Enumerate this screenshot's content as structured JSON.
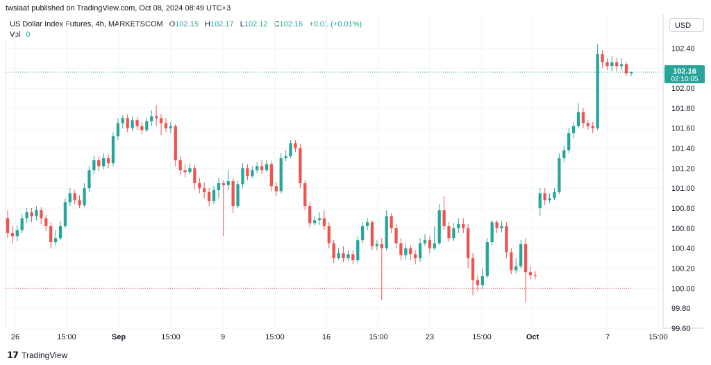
{
  "header": {
    "published": "twsiaat published on TradingView.com, Oct 08, 2024 08:49 UTC+3"
  },
  "legend": {
    "symbol": "US Dollar Index Futures, 4h, MARKETSCOM",
    "o_label": "O",
    "o_value": "102.15",
    "h_label": "H",
    "h_value": "102.17",
    "l_label": "L",
    "l_value": "102.12",
    "c_label": "C",
    "c_value": "102.16",
    "change": "+0.01 (+0.01%)",
    "vol_label": "Vol",
    "vol_value": "0"
  },
  "currency": "USD",
  "price_tag": {
    "price": "102.16",
    "countdown": "02:10:05"
  },
  "footer": {
    "brand": "TradingView"
  },
  "colors": {
    "up": "#26a69a",
    "down": "#ef5350",
    "grid": "#f0f3fa",
    "text": "#131722"
  },
  "chart_data": {
    "type": "candlestick",
    "title": "US Dollar Index Futures, 4h, MARKETSCOM",
    "ylim": [
      99.6,
      102.5
    ],
    "y_ticks": [
      "102.40",
      "102.20",
      "102.00",
      "101.80",
      "101.60",
      "101.40",
      "101.20",
      "101.00",
      "100.80",
      "100.60",
      "100.40",
      "100.20",
      "100.00",
      "99.80",
      "99.60"
    ],
    "x_ticks": [
      "26",
      "15:00",
      "Sep",
      "15:00",
      "9",
      "15:00",
      "16",
      "15:00",
      "23",
      "15:00",
      "Oct",
      "7",
      "15:00"
    ],
    "bold_x_ticks": [
      "Sep",
      "Oct"
    ],
    "last_price": 102.16,
    "dotted_level": 100.0,
    "candles": [
      [
        100.7,
        100.55,
        100.78,
        100.5
      ],
      [
        100.55,
        100.52,
        100.62,
        100.45
      ],
      [
        100.52,
        100.58,
        100.63,
        100.47
      ],
      [
        100.58,
        100.7,
        100.74,
        100.55
      ],
      [
        100.7,
        100.76,
        100.8,
        100.65
      ],
      [
        100.76,
        100.72,
        100.8,
        100.66
      ],
      [
        100.72,
        100.78,
        100.82,
        100.68
      ],
      [
        100.78,
        100.7,
        100.81,
        100.64
      ],
      [
        100.7,
        100.62,
        100.73,
        100.57
      ],
      [
        100.62,
        100.46,
        100.66,
        100.4
      ],
      [
        100.46,
        100.5,
        100.58,
        100.43
      ],
      [
        100.5,
        100.62,
        100.67,
        100.48
      ],
      [
        100.62,
        100.86,
        100.9,
        100.6
      ],
      [
        100.86,
        100.95,
        101.0,
        100.82
      ],
      [
        100.95,
        100.88,
        100.98,
        100.84
      ],
      [
        100.88,
        100.83,
        100.93,
        100.8
      ],
      [
        100.83,
        101.0,
        101.05,
        100.81
      ],
      [
        101.0,
        101.18,
        101.22,
        100.97
      ],
      [
        101.18,
        101.28,
        101.32,
        101.14
      ],
      [
        101.28,
        101.22,
        101.32,
        101.17
      ],
      [
        101.22,
        101.3,
        101.35,
        101.19
      ],
      [
        101.3,
        101.25,
        101.34,
        101.2
      ],
      [
        101.25,
        101.52,
        101.56,
        101.22
      ],
      [
        101.52,
        101.65,
        101.7,
        101.48
      ],
      [
        101.65,
        101.7,
        101.73,
        101.6
      ],
      [
        101.7,
        101.6,
        101.74,
        101.56
      ],
      [
        101.6,
        101.68,
        101.72,
        101.57
      ],
      [
        101.68,
        101.62,
        101.71,
        101.58
      ],
      [
        101.62,
        101.58,
        101.66,
        101.54
      ],
      [
        101.58,
        101.67,
        101.7,
        101.56
      ],
      [
        101.67,
        101.72,
        101.78,
        101.62
      ],
      [
        101.72,
        101.7,
        101.83,
        101.62
      ],
      [
        101.7,
        101.65,
        101.74,
        101.53
      ],
      [
        101.65,
        101.6,
        101.7,
        101.56
      ],
      [
        101.6,
        101.62,
        101.66,
        101.55
      ],
      [
        101.62,
        101.28,
        101.64,
        101.22
      ],
      [
        101.28,
        101.18,
        101.32,
        101.13
      ],
      [
        101.18,
        101.16,
        101.24,
        101.11
      ],
      [
        101.16,
        101.2,
        101.25,
        101.14
      ],
      [
        101.2,
        101.05,
        101.23,
        100.99
      ],
      [
        101.05,
        101.0,
        101.1,
        100.95
      ],
      [
        101.0,
        100.96,
        101.06,
        100.9
      ],
      [
        100.96,
        100.87,
        101.0,
        100.82
      ],
      [
        100.87,
        100.98,
        101.02,
        100.84
      ],
      [
        100.98,
        101.05,
        101.1,
        100.9
      ],
      [
        101.05,
        101.03,
        101.08,
        100.52
      ],
      [
        101.03,
        101.07,
        101.18,
        100.98
      ],
      [
        101.07,
        100.82,
        101.1,
        100.75
      ],
      [
        100.82,
        101.04,
        101.08,
        100.8
      ],
      [
        101.04,
        101.2,
        101.25,
        101.0
      ],
      [
        101.2,
        101.12,
        101.24,
        101.08
      ],
      [
        101.12,
        101.18,
        101.22,
        101.1
      ],
      [
        101.18,
        101.22,
        101.26,
        101.15
      ],
      [
        101.22,
        101.18,
        101.28,
        101.14
      ],
      [
        101.18,
        101.24,
        101.28,
        101.16
      ],
      [
        101.24,
        101.02,
        101.27,
        100.97
      ],
      [
        101.02,
        100.97,
        101.06,
        100.92
      ],
      [
        100.97,
        101.3,
        101.35,
        100.95
      ],
      [
        101.3,
        101.32,
        101.38,
        101.27
      ],
      [
        101.32,
        101.45,
        101.48,
        101.3
      ],
      [
        101.45,
        101.4,
        101.48,
        101.36
      ],
      [
        101.4,
        101.05,
        101.44,
        101.0
      ],
      [
        101.05,
        100.82,
        101.08,
        100.78
      ],
      [
        100.82,
        100.65,
        100.86,
        100.61
      ],
      [
        100.65,
        100.68,
        100.72,
        100.62
      ],
      [
        100.68,
        100.7,
        100.76,
        100.63
      ],
      [
        100.7,
        100.62,
        100.78,
        100.58
      ],
      [
        100.62,
        100.45,
        100.66,
        100.4
      ],
      [
        100.45,
        100.3,
        100.48,
        100.25
      ],
      [
        100.3,
        100.35,
        100.4,
        100.28
      ],
      [
        100.35,
        100.3,
        100.42,
        100.26
      ],
      [
        100.3,
        100.34,
        100.38,
        100.27
      ],
      [
        100.34,
        100.28,
        100.38,
        100.24
      ],
      [
        100.28,
        100.48,
        100.52,
        100.25
      ],
      [
        100.48,
        100.62,
        100.66,
        100.45
      ],
      [
        100.62,
        100.66,
        100.7,
        100.58
      ],
      [
        100.66,
        100.42,
        100.68,
        100.38
      ],
      [
        100.42,
        100.44,
        100.48,
        100.38
      ],
      [
        100.44,
        100.4,
        100.5,
        99.88
      ],
      [
        100.4,
        100.72,
        100.78,
        100.37
      ],
      [
        100.72,
        100.6,
        100.75,
        100.55
      ],
      [
        100.6,
        100.45,
        100.64,
        100.4
      ],
      [
        100.45,
        100.33,
        100.5,
        100.28
      ],
      [
        100.33,
        100.4,
        100.45,
        100.29
      ],
      [
        100.4,
        100.34,
        100.43,
        100.28
      ],
      [
        100.34,
        100.3,
        100.38,
        100.24
      ],
      [
        100.3,
        100.45,
        100.5,
        100.26
      ],
      [
        100.45,
        100.48,
        100.54,
        100.42
      ],
      [
        100.48,
        100.4,
        100.52,
        100.35
      ],
      [
        100.4,
        100.45,
        100.62,
        100.38
      ],
      [
        100.45,
        100.78,
        100.84,
        100.43
      ],
      [
        100.78,
        100.62,
        100.92,
        100.58
      ],
      [
        100.62,
        100.5,
        100.66,
        100.46
      ],
      [
        100.5,
        100.6,
        100.65,
        100.47
      ],
      [
        100.6,
        100.64,
        100.7,
        100.55
      ],
      [
        100.64,
        100.6,
        100.7,
        100.55
      ],
      [
        100.6,
        100.3,
        100.64,
        100.2
      ],
      [
        100.3,
        100.08,
        100.35,
        99.93
      ],
      [
        100.08,
        100.03,
        100.13,
        99.97
      ],
      [
        100.03,
        100.12,
        100.2,
        99.99
      ],
      [
        100.12,
        100.46,
        100.5,
        100.1
      ],
      [
        100.46,
        100.66,
        100.68,
        100.43
      ],
      [
        100.66,
        100.6,
        100.68,
        100.55
      ],
      [
        100.6,
        100.62,
        100.67,
        100.56
      ],
      [
        100.62,
        100.36,
        100.66,
        100.3
      ],
      [
        100.36,
        100.18,
        100.4,
        100.14
      ],
      [
        100.18,
        100.22,
        100.3,
        100.15
      ],
      [
        100.22,
        100.44,
        100.48,
        100.2
      ],
      [
        100.44,
        100.16,
        100.5,
        99.86
      ],
      [
        100.16,
        100.13,
        100.22,
        100.09
      ],
      [
        100.13,
        100.12,
        100.17,
        100.09
      ],
      [
        100.8,
        100.95,
        101.0,
        100.72
      ],
      [
        100.95,
        100.88,
        101.0,
        100.83
      ],
      [
        100.88,
        100.9,
        100.95,
        100.85
      ],
      [
        100.9,
        100.96,
        101.0,
        100.88
      ],
      [
        100.96,
        101.3,
        101.35,
        100.94
      ],
      [
        101.3,
        101.38,
        101.42,
        101.26
      ],
      [
        101.38,
        101.55,
        101.6,
        101.35
      ],
      [
        101.55,
        101.62,
        101.66,
        101.5
      ],
      [
        101.62,
        101.76,
        101.85,
        101.6
      ],
      [
        101.76,
        101.65,
        101.8,
        101.6
      ],
      [
        101.65,
        101.62,
        101.68,
        101.58
      ],
      [
        101.62,
        101.6,
        101.66,
        101.55
      ],
      [
        101.6,
        102.34,
        102.44,
        101.58
      ],
      [
        102.34,
        102.26,
        102.38,
        102.2
      ],
      [
        102.26,
        102.22,
        102.3,
        102.18
      ],
      [
        102.22,
        102.26,
        102.32,
        102.17
      ],
      [
        102.26,
        102.22,
        102.3,
        102.17
      ],
      [
        102.22,
        102.24,
        102.3,
        102.18
      ],
      [
        102.24,
        102.15,
        102.26,
        102.12
      ],
      [
        102.15,
        102.16,
        102.17,
        102.12
      ]
    ]
  }
}
